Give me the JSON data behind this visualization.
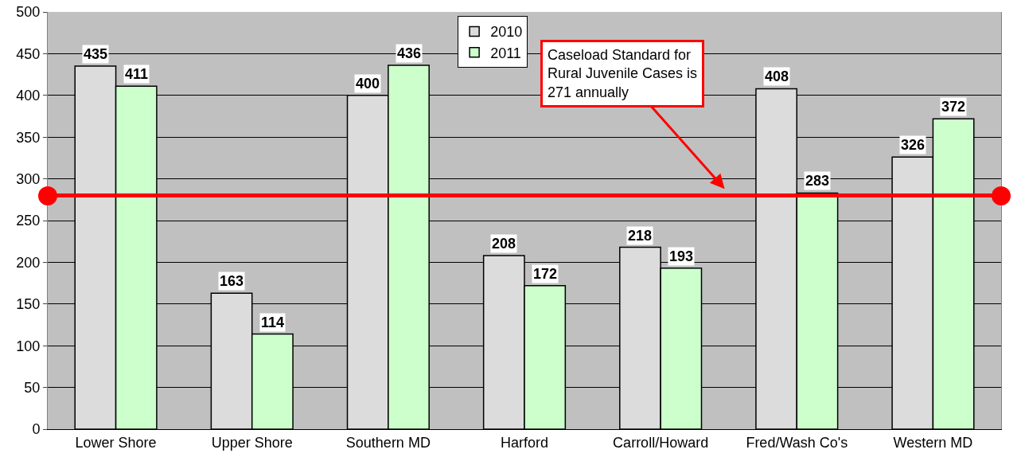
{
  "chart_data": {
    "type": "bar",
    "categories": [
      "Lower Shore",
      "Upper Shore",
      "Southern MD",
      "Harford",
      "Carroll/Howard",
      "Fred/Wash Co's",
      "Western MD"
    ],
    "series": [
      {
        "name": "2010",
        "color": "#dcdcdc",
        "values": [
          435,
          163,
          400,
          208,
          218,
          408,
          326
        ]
      },
      {
        "name": "2011",
        "color": "#ccffcc",
        "values": [
          411,
          114,
          436,
          172,
          193,
          283,
          372
        ]
      }
    ],
    "ylim": [
      0,
      500
    ],
    "yticks": [
      0,
      50,
      100,
      150,
      200,
      250,
      300,
      350,
      400,
      450,
      500
    ],
    "grid": "y",
    "legend": "top",
    "data_labels": true,
    "ref_lines": [
      {
        "axis": "y",
        "value": 280,
        "color": "#ff0000"
      }
    ],
    "annotations": [
      "Caseload Standard for Rural Juvenile Cases is 271 annually"
    ]
  }
}
